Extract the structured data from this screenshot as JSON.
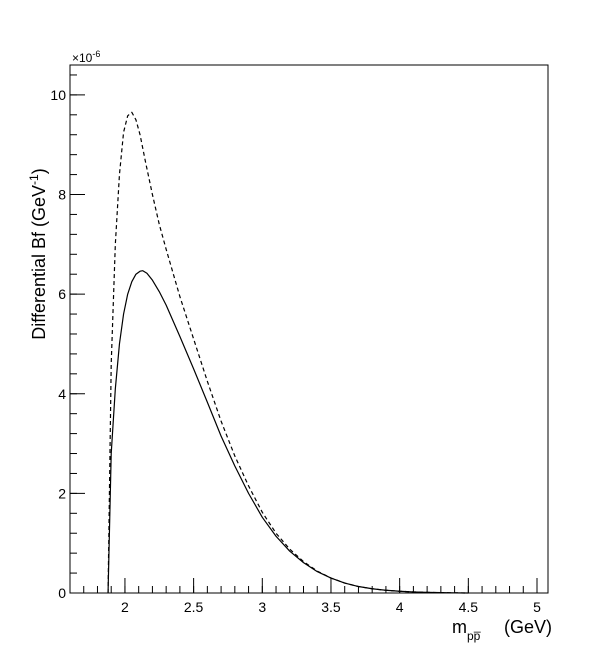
{
  "chart_data": {
    "type": "line",
    "title": "",
    "xlabel": "m_{p̅p} (GeV)",
    "xlabel_main": "m",
    "xlabel_sub": "pp̅",
    "xlabel_unit": "(GeV)",
    "ylabel": "Differential Bf (GeV-1)",
    "ylabel_main": "Differential Bf (GeV",
    "ylabel_exp": "-1",
    "ylabel_end": ")",
    "y_multiplier": "×10",
    "y_multiplier_exp": "-6",
    "xlim": [
      1.6,
      5.08
    ],
    "ylim": [
      0,
      10.6
    ],
    "x_ticks": [
      2,
      2.5,
      3,
      3.5,
      4,
      4.5,
      5
    ],
    "x_tick_labels": [
      "2",
      "2.5",
      "3",
      "3.5",
      "4",
      "4.5",
      "5"
    ],
    "y_ticks": [
      0,
      2,
      4,
      6,
      8,
      10
    ],
    "y_tick_labels": [
      "0",
      "2",
      "4",
      "6",
      "8",
      "10"
    ],
    "grid": false,
    "series": [
      {
        "style": "dashed",
        "color": "#000000",
        "x": [
          1.877,
          1.9,
          1.93,
          1.96,
          1.99,
          2.02,
          2.05,
          2.08,
          2.11,
          2.15,
          2.2,
          2.25,
          2.3,
          2.4,
          2.5,
          2.6,
          2.7,
          2.8,
          2.9,
          3.0,
          3.1,
          3.2,
          3.3,
          3.4,
          3.5,
          3.6,
          3.7,
          3.8,
          3.9,
          4.0,
          4.1,
          4.2,
          4.3,
          4.4,
          4.5
        ],
        "values": [
          0.0,
          4.6,
          7.0,
          8.4,
          9.25,
          9.58,
          9.65,
          9.5,
          9.2,
          8.65,
          8.0,
          7.4,
          6.9,
          5.95,
          5.1,
          4.25,
          3.45,
          2.75,
          2.15,
          1.62,
          1.2,
          0.88,
          0.63,
          0.44,
          0.3,
          0.2,
          0.13,
          0.085,
          0.055,
          0.035,
          0.021,
          0.012,
          0.007,
          0.003,
          0.0
        ]
      },
      {
        "style": "solid",
        "color": "#000000",
        "x": [
          1.877,
          1.9,
          1.93,
          1.96,
          1.99,
          2.02,
          2.05,
          2.08,
          2.11,
          2.13,
          2.16,
          2.2,
          2.25,
          2.3,
          2.4,
          2.5,
          2.6,
          2.7,
          2.8,
          2.9,
          3.0,
          3.1,
          3.2,
          3.3,
          3.4,
          3.5,
          3.6,
          3.7,
          3.8,
          3.9,
          4.0,
          4.1,
          4.2,
          4.3,
          4.4,
          4.5
        ],
        "values": [
          0.0,
          2.8,
          4.1,
          5.0,
          5.6,
          6.0,
          6.25,
          6.4,
          6.46,
          6.47,
          6.42,
          6.28,
          6.05,
          5.78,
          5.15,
          4.5,
          3.83,
          3.15,
          2.55,
          2.0,
          1.52,
          1.14,
          0.84,
          0.61,
          0.43,
          0.3,
          0.2,
          0.13,
          0.085,
          0.055,
          0.035,
          0.021,
          0.012,
          0.007,
          0.003,
          0.0
        ]
      }
    ]
  }
}
